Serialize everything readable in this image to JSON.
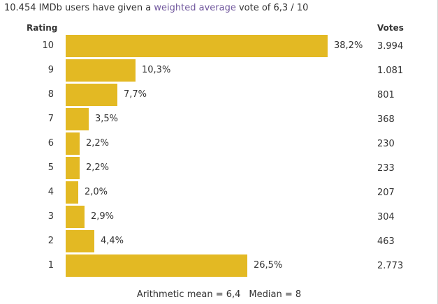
{
  "summary": {
    "prefix": "10.454 IMDb users have given a ",
    "link_text": "weighted average",
    "suffix": " vote of 6,3 / 10"
  },
  "headers": {
    "rating": "Rating",
    "votes": "Votes"
  },
  "chart_data": {
    "type": "bar",
    "orientation": "horizontal",
    "bar_color": "#e3b923",
    "link_color": "#70579d",
    "grid": false,
    "categories": [
      "10",
      "9",
      "8",
      "7",
      "6",
      "5",
      "4",
      "3",
      "2",
      "1"
    ],
    "percent_labels": [
      "38,2%",
      "10,3%",
      "7,7%",
      "3,5%",
      "2,2%",
      "2,2%",
      "2,0%",
      "2,9%",
      "4,4%",
      "26,5%"
    ],
    "values": [
      38.2,
      10.3,
      7.7,
      3.5,
      2.2,
      2.2,
      2.0,
      2.9,
      4.4,
      26.5
    ],
    "votes": [
      "3.994",
      "1.081",
      "801",
      "368",
      "230",
      "233",
      "207",
      "304",
      "463",
      "2.773"
    ]
  },
  "footer": {
    "mean": "Arithmetic mean = 6,4",
    "median": "Median = 8"
  }
}
